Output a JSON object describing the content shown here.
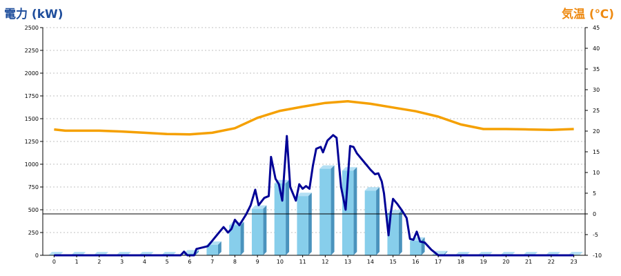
{
  "colors": {
    "power_title": "#1f4e9c",
    "temp_title": "#ee8a12",
    "bar_front": "#87ceeb",
    "bar_top": "#b4e0f4",
    "bar_side": "#4a93bd",
    "power_line": "#000096",
    "temp_line": "#f5a000",
    "grid": "#bfbfbf"
  },
  "chart_data": {
    "type": "bar",
    "left_axis_title": "電力 (kW)",
    "right_axis_title": "気温 (℃)",
    "left_ylim": [
      0,
      2500
    ],
    "right_ylim": [
      -10,
      45
    ],
    "left_ticks": [
      "0",
      "250",
      "500",
      "750",
      "1000",
      "1250",
      "1500",
      "1750",
      "2000",
      "2250",
      "2500"
    ],
    "right_ticks": [
      "-10",
      "-5",
      "0",
      "5",
      "10",
      "15",
      "20",
      "25",
      "30",
      "35",
      "40",
      "45"
    ],
    "categories": [
      "0",
      "1",
      "2",
      "3",
      "4",
      "5",
      "6",
      "7",
      "8",
      "9",
      "10",
      "11",
      "12",
      "13",
      "14",
      "15",
      "16",
      "17",
      "18",
      "19",
      "20",
      "21",
      "22",
      "23"
    ],
    "grid": "horizontal dotted",
    "series": [
      {
        "type": "bar",
        "axis": "left",
        "values": [
          0,
          0,
          0,
          0,
          0,
          0,
          20,
          115,
          330,
          510,
          790,
          650,
          950,
          930,
          710,
          460,
          160,
          10,
          0,
          0,
          0,
          0,
          0,
          0
        ]
      },
      {
        "type": "line",
        "axis": "left",
        "points": [
          [
            0,
            0
          ],
          [
            1,
            0
          ],
          [
            2,
            0
          ],
          [
            3,
            0
          ],
          [
            4,
            0
          ],
          [
            5,
            0
          ],
          [
            5.6,
            0
          ],
          [
            5.75,
            40
          ],
          [
            5.9,
            0
          ],
          [
            6.2,
            0
          ],
          [
            6.3,
            70
          ],
          [
            6.8,
            100
          ],
          [
            7.0,
            160
          ],
          [
            7.3,
            250
          ],
          [
            7.5,
            310
          ],
          [
            7.7,
            250
          ],
          [
            7.85,
            290
          ],
          [
            8.0,
            390
          ],
          [
            8.2,
            330
          ],
          [
            8.5,
            450
          ],
          [
            8.7,
            550
          ],
          [
            8.9,
            720
          ],
          [
            9.05,
            550
          ],
          [
            9.3,
            630
          ],
          [
            9.5,
            650
          ],
          [
            9.6,
            1080
          ],
          [
            9.8,
            840
          ],
          [
            9.95,
            780
          ],
          [
            10.1,
            600
          ],
          [
            10.3,
            1310
          ],
          [
            10.45,
            750
          ],
          [
            10.7,
            600
          ],
          [
            10.85,
            780
          ],
          [
            11.0,
            730
          ],
          [
            11.15,
            760
          ],
          [
            11.3,
            730
          ],
          [
            11.45,
            980
          ],
          [
            11.6,
            1170
          ],
          [
            11.8,
            1190
          ],
          [
            11.9,
            1130
          ],
          [
            12.1,
            1260
          ],
          [
            12.35,
            1320
          ],
          [
            12.5,
            1290
          ],
          [
            12.7,
            750
          ],
          [
            12.9,
            500
          ],
          [
            13.1,
            1200
          ],
          [
            13.25,
            1190
          ],
          [
            13.4,
            1120
          ],
          [
            13.7,
            1030
          ],
          [
            14.0,
            940
          ],
          [
            14.2,
            890
          ],
          [
            14.35,
            900
          ],
          [
            14.5,
            810
          ],
          [
            14.6,
            680
          ],
          [
            14.8,
            220
          ],
          [
            14.9,
            470
          ],
          [
            15.0,
            620
          ],
          [
            15.2,
            560
          ],
          [
            15.4,
            490
          ],
          [
            15.6,
            410
          ],
          [
            15.75,
            180
          ],
          [
            15.9,
            170
          ],
          [
            16.05,
            260
          ],
          [
            16.2,
            150
          ],
          [
            16.4,
            140
          ],
          [
            16.55,
            100
          ],
          [
            16.7,
            60
          ],
          [
            16.8,
            40
          ],
          [
            17.0,
            0
          ],
          [
            18,
            0
          ],
          [
            19,
            0
          ],
          [
            20,
            0
          ],
          [
            21,
            0
          ],
          [
            22,
            0
          ],
          [
            23,
            0
          ]
        ]
      },
      {
        "type": "line",
        "axis": "right",
        "points": [
          [
            0,
            20.4
          ],
          [
            0.5,
            20.1
          ],
          [
            1,
            20.1
          ],
          [
            2,
            20.1
          ],
          [
            3,
            19.9
          ],
          [
            4,
            19.6
          ],
          [
            5,
            19.3
          ],
          [
            6,
            19.2
          ],
          [
            7,
            19.6
          ],
          [
            8,
            20.7
          ],
          [
            9,
            23.2
          ],
          [
            10,
            24.9
          ],
          [
            11,
            25.9
          ],
          [
            12,
            26.8
          ],
          [
            13,
            27.2
          ],
          [
            14,
            26.6
          ],
          [
            15,
            25.7
          ],
          [
            16,
            24.8
          ],
          [
            17,
            23.5
          ],
          [
            18,
            21.6
          ],
          [
            19,
            20.5
          ],
          [
            20,
            20.5
          ],
          [
            21,
            20.4
          ],
          [
            22,
            20.3
          ],
          [
            23,
            20.5
          ]
        ]
      }
    ]
  }
}
